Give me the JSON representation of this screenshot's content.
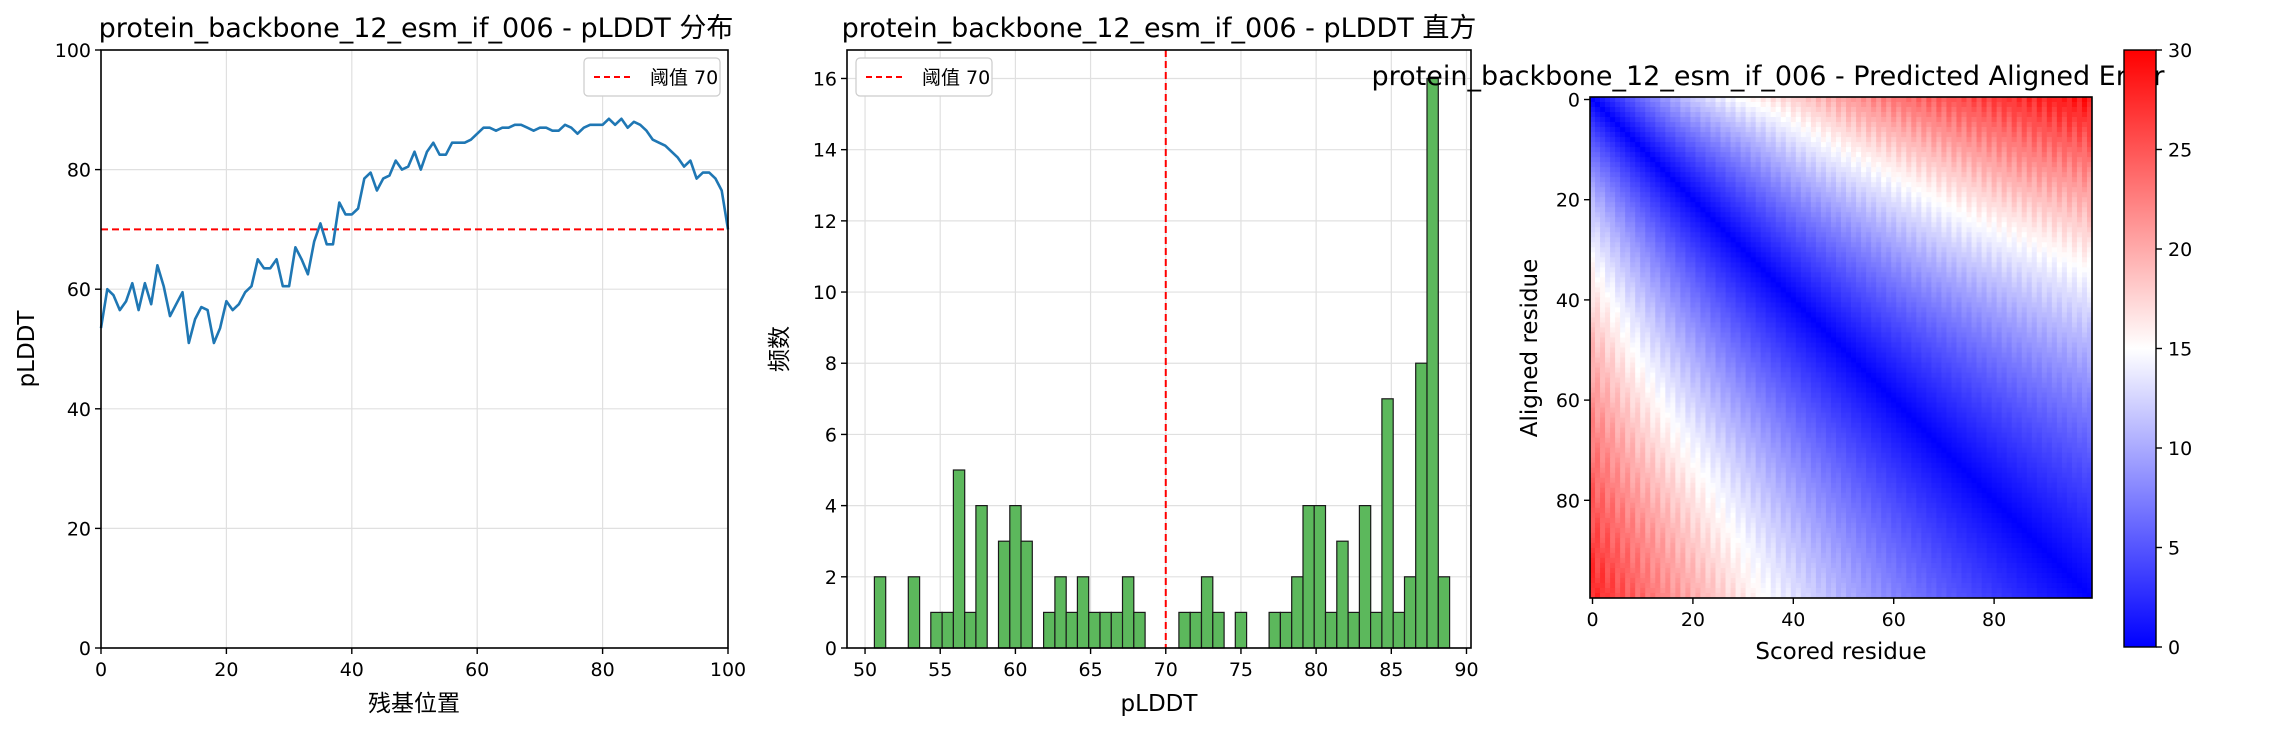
{
  "chart_data": [
    {
      "type": "line",
      "title": "protein_backbone_12_esm_if_006 - pLDDT 分布",
      "xlabel": "残基位置",
      "ylabel": "pLDDT",
      "xlim": [
        0,
        100
      ],
      "ylim": [
        0,
        100
      ],
      "xticks": [
        "0",
        "20",
        "40",
        "60",
        "80",
        "100"
      ],
      "yticks": [
        "0",
        "20",
        "40",
        "60",
        "80",
        "100"
      ],
      "grid": true,
      "legend": {
        "placement": "top-right",
        "entries": [
          "阈值 70"
        ]
      },
      "threshold": 70,
      "colors": {
        "line": "#1f77b4",
        "threshold": "#ff0000"
      },
      "series": [
        {
          "x": [
            0,
            1,
            2,
            3,
            4,
            5,
            6,
            7,
            8,
            9,
            10,
            11,
            12,
            13,
            14,
            15,
            16,
            17,
            18,
            19,
            20,
            21,
            22,
            23,
            24,
            25,
            26,
            27,
            28,
            29,
            30,
            31,
            32,
            33,
            34,
            35,
            36,
            37,
            38,
            39,
            40,
            41,
            42,
            43,
            44,
            45,
            46,
            47,
            48,
            49,
            50,
            51,
            52,
            53,
            54,
            55,
            56,
            57,
            58,
            59,
            60,
            61,
            62,
            63,
            64,
            65,
            66,
            67,
            68,
            69,
            70,
            71,
            72,
            73,
            74,
            75,
            76,
            77,
            78,
            79,
            80,
            81,
            82,
            83,
            84,
            85,
            86,
            87,
            88,
            89,
            90,
            91,
            92,
            93,
            94,
            95,
            96,
            97,
            98,
            99,
            100
          ],
          "values": [
            53.5,
            60,
            59,
            56.5,
            58,
            61,
            56.5,
            61,
            57.5,
            64,
            60.5,
            55.5,
            57.5,
            59.5,
            51,
            55,
            57,
            56.5,
            51,
            53.5,
            58,
            56.5,
            57.5,
            59.5,
            60.5,
            65,
            63.5,
            63.5,
            65,
            60.5,
            60.5,
            67,
            65,
            62.5,
            68,
            71,
            67.5,
            67.5,
            74.5,
            72.5,
            72.5,
            73.5,
            78.5,
            79.5,
            76.5,
            78.5,
            79,
            81.5,
            80,
            80.5,
            83,
            80,
            83,
            84.5,
            82.5,
            82.5,
            84.5,
            84.5,
            84.5,
            85,
            86,
            87,
            87,
            86.5,
            87,
            87,
            87.5,
            87.5,
            87,
            86.5,
            87,
            87,
            86.5,
            86.5,
            87.5,
            87,
            86,
            87,
            87.5,
            87.5,
            87.5,
            88.5,
            87.5,
            88.5,
            87,
            88,
            87.5,
            86.5,
            85,
            84.5,
            84,
            83,
            82,
            80.5,
            81.5,
            78.5,
            79.5,
            79.5,
            78.5,
            76.5,
            70
          ]
        }
      ]
    },
    {
      "type": "bar",
      "title": "protein_backbone_12_esm_if_006 - pLDDT 直方",
      "xlabel": "pLDDT",
      "ylabel": "频数",
      "xlim": [
        48.8,
        90.3
      ],
      "ylim": [
        0,
        16.8
      ],
      "xticks": [
        "50",
        "55",
        "60",
        "65",
        "70",
        "75",
        "80",
        "85",
        "90"
      ],
      "yticks": [
        "0",
        "2",
        "4",
        "6",
        "8",
        "10",
        "12",
        "14",
        "16"
      ],
      "grid": true,
      "legend": {
        "placement": "top-left",
        "entries": [
          "阈值 70"
        ]
      },
      "threshold": 70,
      "bin_width": 0.75,
      "colors": {
        "bar": "#5cb85c",
        "edge": "#1a1a1a",
        "threshold": "#ff0000"
      },
      "bins": [
        {
          "x": 51.0,
          "count": 2
        },
        {
          "x": 53.25,
          "count": 2
        },
        {
          "x": 54.75,
          "count": 1
        },
        {
          "x": 55.5,
          "count": 1
        },
        {
          "x": 56.25,
          "count": 5
        },
        {
          "x": 57.0,
          "count": 1
        },
        {
          "x": 57.75,
          "count": 4
        },
        {
          "x": 59.25,
          "count": 3
        },
        {
          "x": 60.0,
          "count": 4
        },
        {
          "x": 60.75,
          "count": 3
        },
        {
          "x": 62.25,
          "count": 1
        },
        {
          "x": 63.0,
          "count": 2
        },
        {
          "x": 63.75,
          "count": 1
        },
        {
          "x": 64.5,
          "count": 2
        },
        {
          "x": 65.25,
          "count": 1
        },
        {
          "x": 66.0,
          "count": 1
        },
        {
          "x": 66.75,
          "count": 1
        },
        {
          "x": 67.5,
          "count": 2
        },
        {
          "x": 68.25,
          "count": 1
        },
        {
          "x": 71.25,
          "count": 1
        },
        {
          "x": 72.0,
          "count": 1
        },
        {
          "x": 72.75,
          "count": 2
        },
        {
          "x": 73.5,
          "count": 1
        },
        {
          "x": 75.0,
          "count": 1
        },
        {
          "x": 77.25,
          "count": 1
        },
        {
          "x": 78.0,
          "count": 1
        },
        {
          "x": 78.75,
          "count": 2
        },
        {
          "x": 79.5,
          "count": 4
        },
        {
          "x": 80.25,
          "count": 4
        },
        {
          "x": 81.0,
          "count": 1
        },
        {
          "x": 81.75,
          "count": 3
        },
        {
          "x": 82.5,
          "count": 1
        },
        {
          "x": 83.25,
          "count": 4
        },
        {
          "x": 84.0,
          "count": 1
        },
        {
          "x": 84.75,
          "count": 7
        },
        {
          "x": 85.5,
          "count": 1
        },
        {
          "x": 86.25,
          "count": 2
        },
        {
          "x": 87.0,
          "count": 8
        },
        {
          "x": 87.75,
          "count": 16
        },
        {
          "x": 88.5,
          "count": 2
        }
      ]
    },
    {
      "type": "heatmap",
      "title": "protein_backbone_12_esm_if_006 - Predicted Aligned Error",
      "xlabel": "Scored residue",
      "ylabel": "Aligned residue",
      "size": 100,
      "xticks": [
        "0",
        "20",
        "40",
        "60",
        "80"
      ],
      "yticks": [
        "0",
        "20",
        "40",
        "60",
        "80"
      ],
      "colorbar": {
        "range": [
          0,
          30
        ],
        "ticks": [
          "0",
          "5",
          "10",
          "15",
          "20",
          "25",
          "30"
        ],
        "colormap": "bwr",
        "placement": "right"
      },
      "colors": {
        "low": "#0000ff",
        "mid": "#ffffff",
        "high": "#ff0000"
      },
      "pattern": {
        "note_values": "error near 0 along the diagonal, rising to 30 away from it",
        "upper_boundary": [
          [
            0,
            21
          ],
          [
            10,
            25
          ],
          [
            20,
            33
          ],
          [
            30,
            38
          ],
          [
            40,
            44
          ],
          [
            50,
            50
          ],
          [
            60,
            58
          ],
          [
            70,
            65
          ],
          [
            80,
            73
          ],
          [
            90,
            81
          ],
          [
            99,
            86
          ]
        ],
        "lower_boundary": [
          [
            0,
            21
          ],
          [
            10,
            27
          ],
          [
            20,
            34
          ],
          [
            30,
            41
          ],
          [
            40,
            47
          ],
          [
            50,
            52
          ],
          [
            60,
            58
          ],
          [
            70,
            65
          ],
          [
            80,
            73
          ],
          [
            90,
            81
          ],
          [
            99,
            88
          ]
        ]
      }
    }
  ]
}
